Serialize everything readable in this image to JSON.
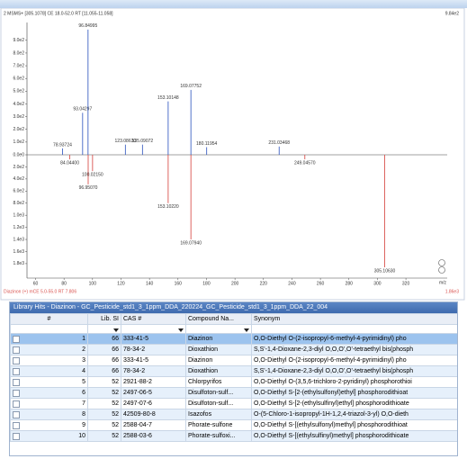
{
  "chart_data": {
    "type": "mirror",
    "title": "2 MSMS+ [305.1078] CE 18.0-52.0 RT [11.055-11.058]",
    "title_right": "9.84e2",
    "subtitle": "Diazinon (+) mCE 5.0-55.0 RT 7.806",
    "subtitle_right": "1.86e3",
    "x_label": "m/z",
    "xlim": [
      54,
      349
    ],
    "xticks": [
      60,
      80,
      100,
      120,
      140,
      160,
      180,
      200,
      220,
      240,
      260,
      280,
      300,
      320
    ],
    "ylim": [
      0,
      1040
    ],
    "yticks": [
      {
        "value": 0,
        "label": "0.0e0"
      },
      {
        "value": 100,
        "label": "1.0e2"
      },
      {
        "value": 200,
        "label": "2.0e2"
      },
      {
        "value": 300,
        "label": "3.0e2"
      },
      {
        "value": 400,
        "label": "4.0e2"
      },
      {
        "value": 500,
        "label": "5.0e2"
      },
      {
        "value": 600,
        "label": "6.0e2"
      },
      {
        "value": 700,
        "label": "7.0e2"
      },
      {
        "value": 800,
        "label": "8.0e2"
      },
      {
        "value": 900,
        "label": "9.0e2"
      }
    ],
    "y2lim": [
      0,
      1980
    ],
    "y2_inverted": true,
    "y2ticks": [
      {
        "value": 200,
        "label": "2.0e2"
      },
      {
        "value": 400,
        "label": "4.0e2"
      },
      {
        "value": 600,
        "label": "6.0e2"
      },
      {
        "value": 800,
        "label": "8.0e2"
      },
      {
        "value": 1000,
        "label": "1.0e3"
      },
      {
        "value": 1200,
        "label": "1.2e3"
      },
      {
        "value": 1400,
        "label": "1.4e3"
      },
      {
        "value": 1600,
        "label": "1.6e3"
      },
      {
        "value": 1800,
        "label": "1.8e3"
      }
    ],
    "series": [
      {
        "color": "#3f63c4",
        "x": [
          78.93724,
          93.04297,
          96.84995,
          123.0863,
          135.09072,
          153.10148,
          169.07752,
          180.11954,
          231.03468
        ],
        "x_labels": [
          "78.93724",
          "93.04297",
          "96.84995",
          "123.08630",
          "135.09072",
          "153.10148",
          "169.07752",
          "180.11954",
          "231.03468"
        ],
        "values": [
          50,
          330,
          984,
          80,
          80,
          420,
          510,
          60,
          65
        ]
      },
      {
        "color": "#d9534f",
        "axis": "y2",
        "x": [
          84.044,
          96.9507,
          100.0215,
          153.1022,
          169.0794,
          249.0457,
          305.1063
        ],
        "x_labels": [
          "84.04400",
          "96.95070",
          "100.02150",
          "153.10220",
          "169.07940",
          "249.04570",
          "305.10630"
        ],
        "values": [
          75,
          490,
          270,
          800,
          1400,
          75,
          1860
        ]
      }
    ]
  },
  "table": {
    "title": "Library Hits - Diazinon - GC_Pesticide_std1_3_1ppm_DDA_220224_GC_Pesticide_std1_3_1ppm_DDA_22_004",
    "columns": [
      "#",
      "Lib. SI",
      "CAS #",
      "Compound Na...",
      "Synonym"
    ],
    "selected_row": 0,
    "rows": [
      [
        1,
        66,
        "333-41-5",
        "Diazinon",
        "O,O-Diethyl O-(2-isopropyl-6-methyl-4-pyrimidinyl) pho"
      ],
      [
        2,
        66,
        "78-34-2",
        "Dioxathion",
        "S,S'-1,4-Dioxane-2,3-diyl O,O,O',O'-tetraethyl bis(phosph"
      ],
      [
        3,
        66,
        "333-41-5",
        "Diazinon",
        "O,O-Diethyl O-(2-isopropyl-6-methyl-4-pyrimidinyl) pho"
      ],
      [
        4,
        66,
        "78-34-2",
        "Dioxathion",
        "S,S'-1,4-Dioxane-2,3-diyl O,O,O',O'-tetraethyl bis(phosph"
      ],
      [
        5,
        52,
        "2921-88-2",
        "Chlorpyrifos",
        "O,O-Diethyl O-(3,5,6-trichloro-2-pyridinyl) phosphorothioi"
      ],
      [
        6,
        52,
        "2497-06-5",
        "Disulfoton-sulf...",
        "O,O-Diethyl S-[2-(ethylsulfonyl)ethyl] phosphorodithioat"
      ],
      [
        7,
        52,
        "2497-07-6",
        "Disulfoton-sulf...",
        "O,O-Diethyl S-[2-(ethylsulfinyl)ethyl] phosphorodithioate"
      ],
      [
        8,
        52,
        "42509-80-8",
        "Isazofos",
        "O-(5-Chloro-1-isopropyl-1H-1,2,4-triazol-3-yl) O,O-dieth"
      ],
      [
        9,
        52,
        "2588-04-7",
        "Phorate-sulfone",
        "O,O-Diethyl S-[(ethylsulfonyl)methyl] phosphorodithioat"
      ],
      [
        10,
        52,
        "2588-03-6",
        "Phorate-sulfoxi...",
        "O,O-Diethyl S-[(ethylsulfinyl)methyl] phosphorodithioate"
      ]
    ]
  }
}
